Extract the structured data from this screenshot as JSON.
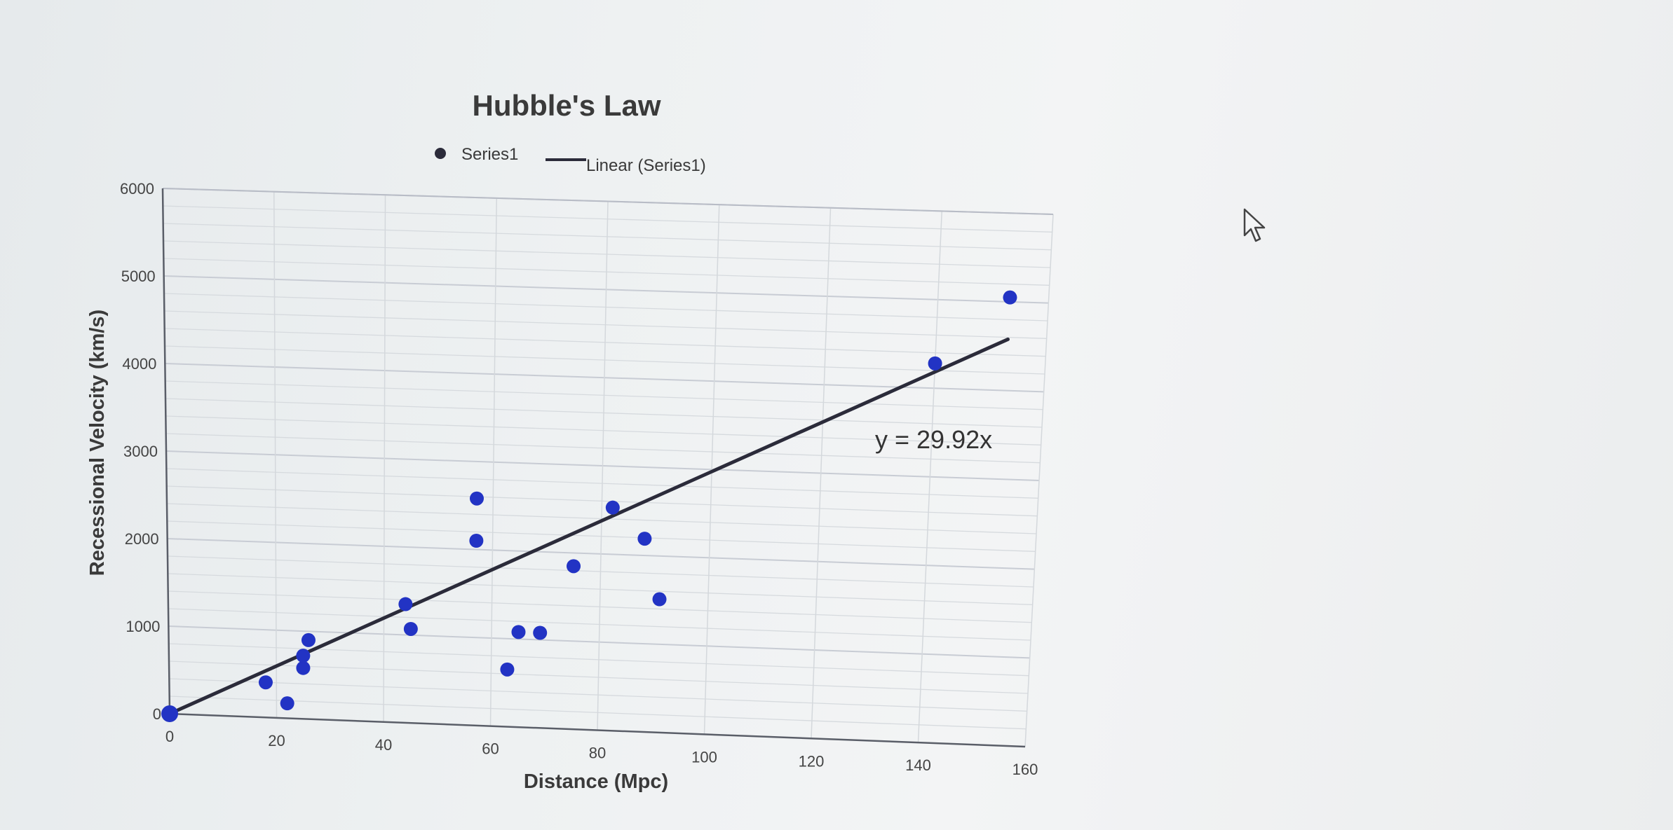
{
  "chart_data": {
    "type": "scatter",
    "title": "Hubble's Law",
    "xlabel": "Distance (Mpc)",
    "ylabel": "Recessional Velocity (km/s)",
    "xlim": [
      0,
      160
    ],
    "ylim": [
      0,
      6000
    ],
    "x_ticks": [
      0,
      20,
      40,
      60,
      80,
      100,
      120,
      140,
      160
    ],
    "y_ticks": [
      0,
      1000,
      2000,
      3000,
      4000,
      5000,
      6000
    ],
    "grid": true,
    "legend_position": "top",
    "series": [
      {
        "name": "Series1",
        "color": "#2233c4",
        "x": [
          0,
          18,
          22,
          25,
          25,
          26,
          44,
          45,
          57,
          57,
          63,
          65,
          69,
          75,
          82,
          88,
          91,
          140,
          153
        ],
        "y": [
          0,
          400,
          170,
          580,
          720,
          900,
          1350,
          1070,
          2100,
          2580,
          650,
          1080,
          1080,
          1850,
          2530,
          2190,
          1510,
          4280,
          5050
        ]
      }
    ],
    "trendline": {
      "name": "Linear (Series1)",
      "type": "linear",
      "slope": 29.92,
      "intercept": 0,
      "x_range": [
        0,
        153
      ],
      "equation": "y = 29.92x",
      "color": "#2b2b3a"
    }
  },
  "cursor": {
    "icon": "arrow-cursor-icon"
  }
}
